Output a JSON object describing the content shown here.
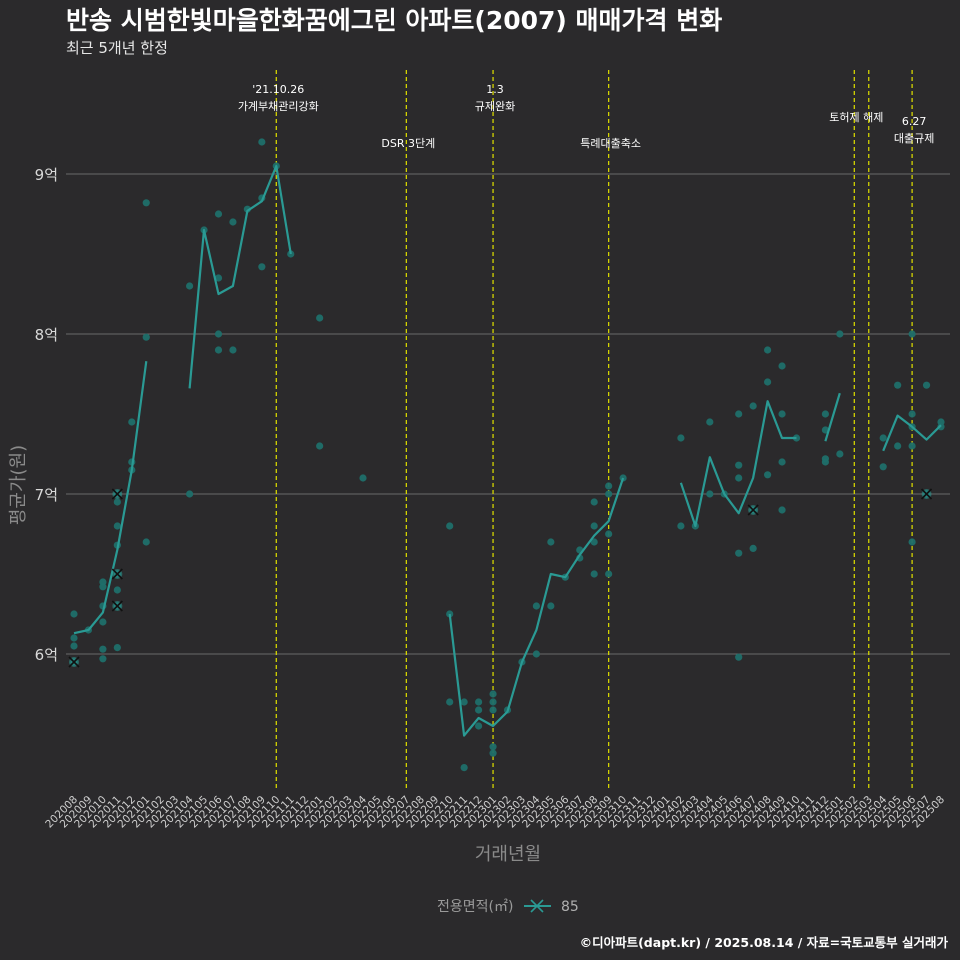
{
  "title": "반송 시범한빛마을한화꿈에그린 아파트(2007) 매매가격 변화",
  "subtitle": "최근 5개년 한정",
  "caption": "©디아파트(dapt.kr) / 2025.08.14 / 자료=국토교통부 실거래가",
  "colors": {
    "series": "#2a9a94",
    "points": "#1f6f6a",
    "event_line": "#d4d400",
    "cross": "#111111",
    "grid": "#6a6a6a",
    "background": "#2b2a2c"
  },
  "chart_data": {
    "type": "line",
    "xlabel": "거래년월",
    "ylabel": "평균가(원)",
    "ylim": [
      5.15,
      9.65
    ],
    "yticks": [
      {
        "value": 6,
        "label": "6억"
      },
      {
        "value": 7,
        "label": "7억"
      },
      {
        "value": 8,
        "label": "8억"
      },
      {
        "value": 9,
        "label": "9억"
      }
    ],
    "grid": true,
    "x_labels": [
      "202008",
      "202009",
      "202010",
      "202011",
      "202012",
      "202101",
      "202102",
      "202103",
      "202104",
      "202105",
      "202106",
      "202107",
      "202108",
      "202109",
      "202110",
      "202111",
      "202112",
      "202201",
      "202202",
      "202203",
      "202204",
      "202205",
      "202206",
      "202207",
      "202208",
      "202209",
      "202210",
      "202211",
      "202212",
      "202301",
      "202302",
      "202303",
      "202304",
      "202305",
      "202306",
      "202307",
      "202308",
      "202309",
      "202310",
      "202311",
      "202312",
      "202401",
      "202402",
      "202403",
      "202404",
      "202405",
      "202406",
      "202407",
      "202408",
      "202409",
      "202410",
      "202411",
      "202412",
      "202501",
      "202502",
      "202503",
      "202504",
      "202505",
      "202506",
      "202507",
      "202508"
    ],
    "legend": {
      "title": "전용면적(㎡)",
      "entries": [
        "85"
      ],
      "position": "bottom"
    },
    "events": [
      {
        "x": 14,
        "lines": [
          "'21.10.26",
          "가계부채관리강화"
        ],
        "text_y": 9.4
      },
      {
        "x": 23,
        "lines": [
          "DSR 3단계"
        ],
        "text_y": 9.17
      },
      {
        "x": 29,
        "lines": [
          "1.3",
          "규제완화"
        ],
        "text_y": 9.4
      },
      {
        "x": 37,
        "lines": [
          "특례대출축소"
        ],
        "text_y": 9.17
      },
      {
        "x": 54,
        "lines": [
          "토허제 해제"
        ],
        "text_y": 9.33
      },
      {
        "x": 55,
        "lines": [],
        "text_y": 9.33
      },
      {
        "x": 58,
        "lines": [
          "6.27",
          "대출규제"
        ],
        "text_y": 9.2
      }
    ],
    "series": [
      {
        "name": "85",
        "segments": [
          [
            [
              0,
              6.13
            ],
            [
              1,
              6.15
            ],
            [
              2,
              6.26
            ],
            [
              3,
              6.65
            ],
            [
              4,
              7.15
            ],
            [
              5,
              7.83
            ]
          ],
          [
            [
              8,
              7.66
            ],
            [
              9,
              8.65
            ],
            [
              10,
              8.25
            ],
            [
              11,
              8.3
            ],
            [
              12,
              8.77
            ],
            [
              13,
              8.83
            ],
            [
              14,
              9.05
            ],
            [
              15,
              8.5
            ]
          ],
          [
            [
              26,
              6.25
            ],
            [
              27,
              5.49
            ],
            [
              28,
              5.6
            ],
            [
              29,
              5.55
            ],
            [
              30,
              5.64
            ],
            [
              31,
              5.95
            ],
            [
              32,
              6.15
            ],
            [
              33,
              6.5
            ],
            [
              34,
              6.48
            ],
            [
              35,
              6.62
            ],
            [
              36,
              6.74
            ],
            [
              37,
              6.83
            ],
            [
              38,
              7.1
            ]
          ],
          [
            [
              42,
              7.07
            ],
            [
              43,
              6.8
            ],
            [
              44,
              7.23
            ],
            [
              45,
              7.0
            ],
            [
              46,
              6.88
            ],
            [
              47,
              7.1
            ],
            [
              48,
              7.58
            ],
            [
              49,
              7.35
            ],
            [
              50,
              7.35
            ]
          ],
          [
            [
              52,
              7.33
            ],
            [
              53,
              7.63
            ]
          ],
          [
            [
              56,
              7.27
            ],
            [
              57,
              7.49
            ],
            [
              58,
              7.42
            ],
            [
              59,
              7.34
            ],
            [
              60,
              7.43
            ]
          ]
        ]
      }
    ],
    "points": [
      [
        0,
        5.95
      ],
      [
        0,
        6.05
      ],
      [
        0,
        6.1
      ],
      [
        0,
        6.25
      ],
      [
        1,
        6.15
      ],
      [
        2,
        5.97
      ],
      [
        2,
        6.03
      ],
      [
        2,
        6.2
      ],
      [
        2,
        6.3
      ],
      [
        2,
        6.42
      ],
      [
        2,
        6.45
      ],
      [
        3,
        6.04
      ],
      [
        3,
        6.3
      ],
      [
        3,
        6.4
      ],
      [
        3,
        6.5
      ],
      [
        3,
        6.68
      ],
      [
        3,
        6.8
      ],
      [
        3,
        6.95
      ],
      [
        3,
        7.0
      ],
      [
        4,
        7.15
      ],
      [
        4,
        7.2
      ],
      [
        4,
        7.45
      ],
      [
        5,
        6.7
      ],
      [
        5,
        7.98
      ],
      [
        5,
        8.82
      ],
      [
        8,
        7.0
      ],
      [
        8,
        8.3
      ],
      [
        9,
        8.65
      ],
      [
        10,
        7.9
      ],
      [
        10,
        8.0
      ],
      [
        10,
        8.35
      ],
      [
        10,
        8.75
      ],
      [
        11,
        7.9
      ],
      [
        11,
        8.7
      ],
      [
        12,
        8.78
      ],
      [
        13,
        8.42
      ],
      [
        13,
        8.85
      ],
      [
        13,
        9.2
      ],
      [
        14,
        9.05
      ],
      [
        15,
        8.5
      ],
      [
        17,
        8.1
      ],
      [
        17,
        7.3
      ],
      [
        20,
        7.1
      ],
      [
        26,
        6.25
      ],
      [
        26,
        6.8
      ],
      [
        26,
        5.7
      ],
      [
        27,
        5.7
      ],
      [
        27,
        5.29
      ],
      [
        28,
        5.55
      ],
      [
        28,
        5.65
      ],
      [
        28,
        5.7
      ],
      [
        29,
        5.38
      ],
      [
        29,
        5.42
      ],
      [
        29,
        5.65
      ],
      [
        29,
        5.7
      ],
      [
        29,
        5.75
      ],
      [
        30,
        5.65
      ],
      [
        31,
        5.95
      ],
      [
        32,
        6.0
      ],
      [
        32,
        6.3
      ],
      [
        33,
        6.3
      ],
      [
        33,
        6.7
      ],
      [
        34,
        6.48
      ],
      [
        35,
        6.6
      ],
      [
        35,
        6.65
      ],
      [
        36,
        6.5
      ],
      [
        36,
        6.7
      ],
      [
        36,
        6.8
      ],
      [
        36,
        6.95
      ],
      [
        37,
        6.5
      ],
      [
        37,
        6.75
      ],
      [
        37,
        7.0
      ],
      [
        37,
        7.05
      ],
      [
        38,
        7.1
      ],
      [
        42,
        6.8
      ],
      [
        42,
        7.35
      ],
      [
        43,
        6.8
      ],
      [
        44,
        7.0
      ],
      [
        44,
        7.45
      ],
      [
        45,
        7.0
      ],
      [
        46,
        5.98
      ],
      [
        46,
        6.63
      ],
      [
        46,
        7.1
      ],
      [
        46,
        7.18
      ],
      [
        46,
        7.5
      ],
      [
        47,
        6.66
      ],
      [
        47,
        6.9
      ],
      [
        47,
        7.55
      ],
      [
        48,
        7.12
      ],
      [
        48,
        7.7
      ],
      [
        48,
        7.9
      ],
      [
        49,
        6.9
      ],
      [
        49,
        7.2
      ],
      [
        49,
        7.5
      ],
      [
        49,
        7.8
      ],
      [
        50,
        7.35
      ],
      [
        52,
        7.2
      ],
      [
        52,
        7.22
      ],
      [
        52,
        7.4
      ],
      [
        52,
        7.5
      ],
      [
        53,
        7.25
      ],
      [
        53,
        8.0
      ],
      [
        56,
        7.17
      ],
      [
        56,
        7.35
      ],
      [
        57,
        7.3
      ],
      [
        57,
        7.68
      ],
      [
        58,
        6.7
      ],
      [
        58,
        7.3
      ],
      [
        58,
        7.42
      ],
      [
        58,
        7.5
      ],
      [
        58,
        8.0
      ],
      [
        59,
        7.0
      ],
      [
        59,
        7.68
      ],
      [
        60,
        7.42
      ],
      [
        60,
        7.45
      ]
    ],
    "cross_markers": [
      [
        0,
        5.95
      ],
      [
        3,
        7.0
      ],
      [
        3,
        6.5
      ],
      [
        3,
        6.3
      ],
      [
        47,
        6.9
      ],
      [
        59,
        7.0
      ]
    ]
  }
}
